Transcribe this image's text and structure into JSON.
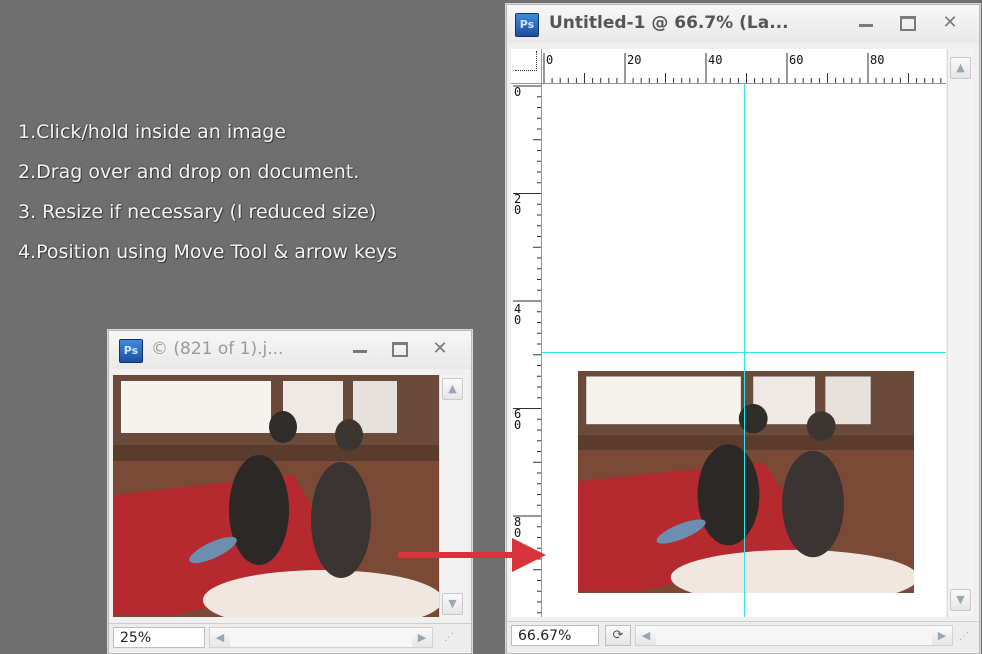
{
  "instructions": [
    "1.Click/hold inside an image",
    "2.Drag over and drop on document.",
    "3. Resize if necessary (I reduced size)",
    "4.Position using Move Tool & arrow keys"
  ],
  "app_icon": "Ps",
  "source_window": {
    "title": "© (821 of 1).j...",
    "zoom": "25%"
  },
  "document_window": {
    "title": "Untitled-1 @ 66.7% (La...",
    "zoom": "66.67%",
    "ruler_top_labels": [
      "0",
      "20",
      "40",
      "60",
      "80"
    ],
    "ruler_left_labels": [
      "0",
      "2\n0",
      "4\n0",
      "6\n0",
      "8\n0"
    ]
  },
  "colors": {
    "guide": "#33e6ee",
    "arrow": "#d6333b",
    "background": "#6f6f6f"
  },
  "icons": [
    "minimize-icon",
    "maximize-icon",
    "close-icon",
    "scroll-up-icon",
    "scroll-down-icon",
    "scroll-left-icon",
    "scroll-right-icon",
    "resize-grip-icon",
    "rotate-view-icon"
  ]
}
